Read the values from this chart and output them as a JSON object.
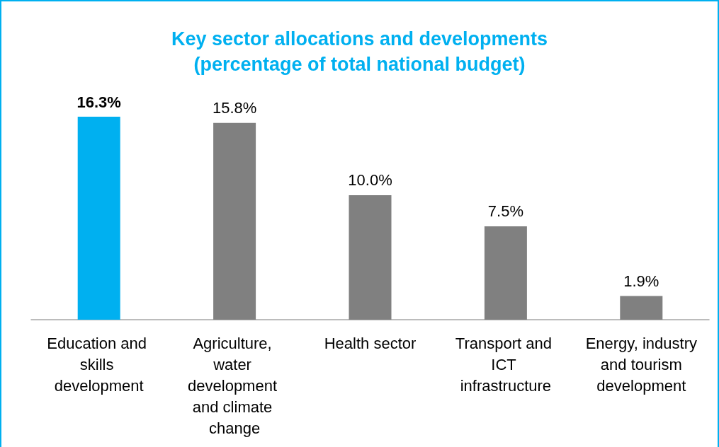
{
  "chart_data": {
    "type": "bar",
    "title": "Key sector allocations and developments\n(percentage of total national budget)",
    "categories": [
      "Education and skills development",
      "Agriculture, water development and climate change",
      "Health sector",
      "Transport and ICT infrastructure",
      "Energy, industry and tourism development"
    ],
    "values": [
      16.3,
      15.8,
      10.0,
      7.5,
      1.9
    ],
    "colors": [
      "#00b0f0",
      "#808080",
      "#808080",
      "#808080",
      "#808080"
    ],
    "value_labels": [
      "16.3%",
      "15.8%",
      "10.0%",
      "7.5%",
      "1.9%"
    ]
  }
}
